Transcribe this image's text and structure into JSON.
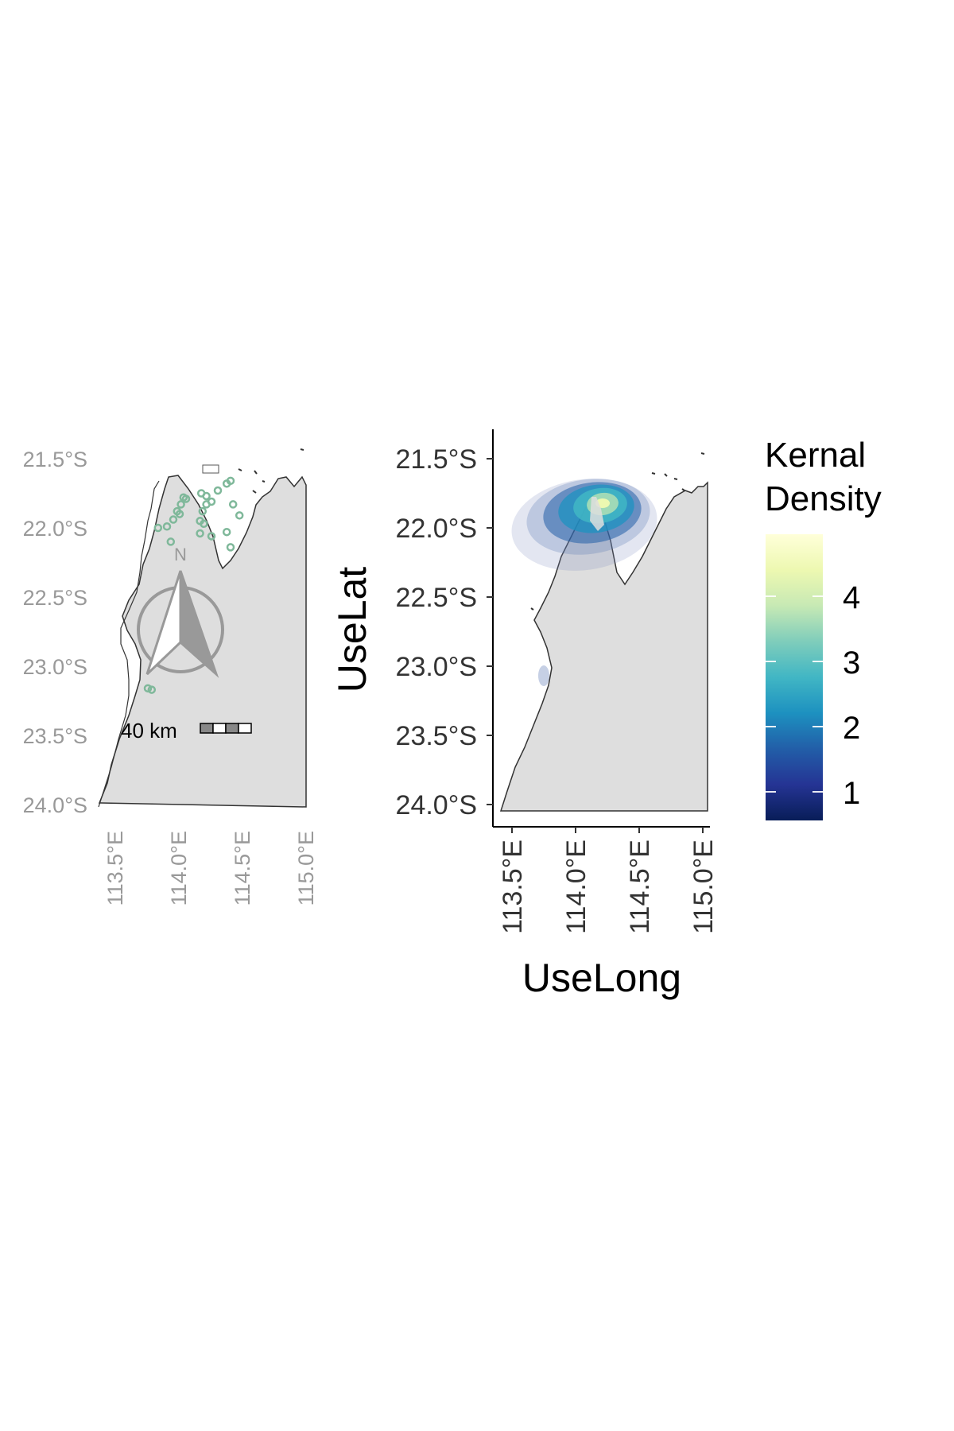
{
  "left_map": {
    "lat_ticks": [
      "21.5°S",
      "22.0°S",
      "22.5°S",
      "23.0°S",
      "23.5°S",
      "24.0°S"
    ],
    "lon_ticks": [
      "113.5°E",
      "114.0°E",
      "114.5°E",
      "115.0°E"
    ],
    "tick_color": "#999999",
    "land_color": "#dedede",
    "point_color": "#7fb89a",
    "north_arrow_label": "N",
    "north_arrow_icon": "north-arrow-icon",
    "scale_bar_label": "40 km",
    "points": [
      {
        "lon": 113.98,
        "lat": 21.78
      },
      {
        "lon": 114.0,
        "lat": 21.79
      },
      {
        "lon": 113.96,
        "lat": 21.83
      },
      {
        "lon": 113.93,
        "lat": 21.88
      },
      {
        "lon": 113.95,
        "lat": 21.9
      },
      {
        "lon": 113.9,
        "lat": 21.94
      },
      {
        "lon": 113.85,
        "lat": 21.99
      },
      {
        "lon": 113.78,
        "lat": 22.0
      },
      {
        "lon": 113.88,
        "lat": 22.1
      },
      {
        "lon": 114.12,
        "lat": 21.75
      },
      {
        "lon": 114.16,
        "lat": 21.77
      },
      {
        "lon": 114.2,
        "lat": 21.81
      },
      {
        "lon": 114.16,
        "lat": 21.83
      },
      {
        "lon": 114.13,
        "lat": 21.88
      },
      {
        "lon": 114.11,
        "lat": 21.95
      },
      {
        "lon": 114.14,
        "lat": 21.97
      },
      {
        "lon": 114.11,
        "lat": 22.04
      },
      {
        "lon": 114.2,
        "lat": 22.06
      },
      {
        "lon": 114.25,
        "lat": 21.73
      },
      {
        "lon": 114.32,
        "lat": 21.68
      },
      {
        "lon": 114.35,
        "lat": 21.66
      },
      {
        "lon": 114.37,
        "lat": 21.83
      },
      {
        "lon": 114.42,
        "lat": 21.91
      },
      {
        "lon": 114.35,
        "lat": 22.14
      },
      {
        "lon": 114.32,
        "lat": 22.03
      },
      {
        "lon": 113.7,
        "lat": 23.16
      },
      {
        "lon": 113.73,
        "lat": 23.17
      }
    ]
  },
  "right_map": {
    "lat_ticks": [
      "21.5°S",
      "22.0°S",
      "22.5°S",
      "23.0°S",
      "23.5°S",
      "24.0°S"
    ],
    "lon_ticks": [
      "113.5°E",
      "114.0°E",
      "114.5°E",
      "115.0°E"
    ],
    "xlabel": "UseLong",
    "ylabel": "UseLat",
    "land_color": "#dedede"
  },
  "legend": {
    "title_line1": "Kernal",
    "title_line2": "Density",
    "labels": [
      "4",
      "3",
      "2",
      "1"
    ],
    "colors": [
      "#081d58",
      "#253494",
      "#225ea8",
      "#1d91c0",
      "#41b6c4",
      "#7fcdbb",
      "#c7e9b4",
      "#edf8b1",
      "#ffffd9"
    ]
  },
  "chart_data": {
    "type": "heatmap",
    "title": "",
    "xlabel": "UseLong",
    "ylabel": "UseLat",
    "xlim": [
      113.35,
      115.0
    ],
    "ylim": [
      -24.05,
      -21.3
    ],
    "x_ticks": [
      "113.5°E",
      "114.0°E",
      "114.5°E",
      "115.0°E"
    ],
    "y_ticks": [
      "21.5°S",
      "22.0°S",
      "22.5°S",
      "23.0°S",
      "23.5°S",
      "24.0°S"
    ],
    "legend": {
      "title": "Kernal Density",
      "breaks": [
        1,
        2,
        3,
        4
      ],
      "range": [
        0,
        5
      ]
    },
    "density_peak": {
      "lon": 114.2,
      "lat": -21.85,
      "value": 4.5
    },
    "secondary_density": {
      "lon": 113.73,
      "lat": -23.12,
      "value": 0.5
    }
  }
}
